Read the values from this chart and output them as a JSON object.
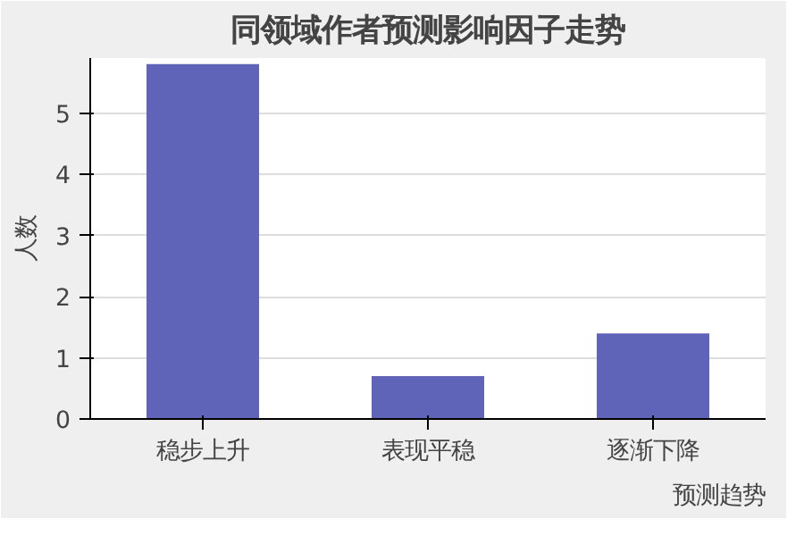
{
  "chart_data": {
    "type": "bar",
    "title": "同领域作者预测影响因子走势",
    "xlabel": "预测趋势",
    "ylabel": "人数",
    "categories": [
      "稳步上升",
      "表现平稳",
      "逐渐下降"
    ],
    "values": [
      5.8,
      0.7,
      1.4
    ],
    "color": "#6064b8",
    "ylim": [
      0,
      5.9
    ],
    "yticks": [
      0,
      1,
      2,
      3,
      4,
      5
    ],
    "grid": "y"
  }
}
